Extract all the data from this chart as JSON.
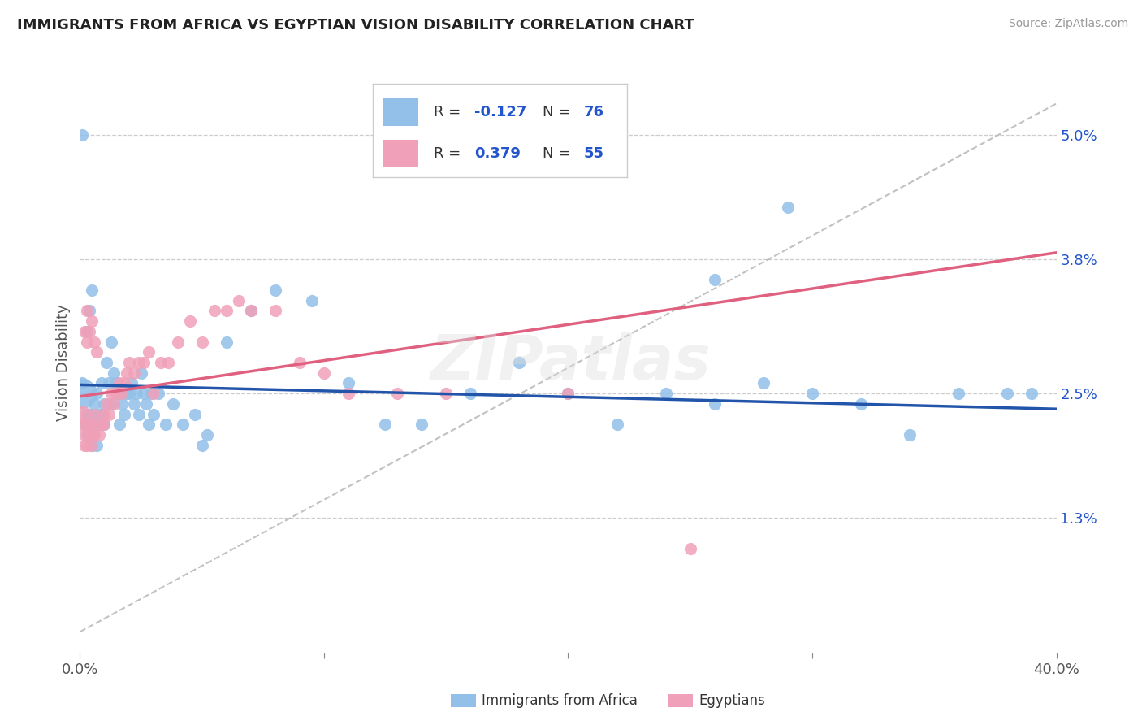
{
  "title": "IMMIGRANTS FROM AFRICA VS EGYPTIAN VISION DISABILITY CORRELATION CHART",
  "source": "Source: ZipAtlas.com",
  "ylabel": "Vision Disability",
  "xlim": [
    0.0,
    0.4
  ],
  "ylim": [
    0.0,
    0.056
  ],
  "xtick_positions": [
    0.0,
    0.1,
    0.2,
    0.3,
    0.4
  ],
  "xticklabels": [
    "0.0%",
    "",
    "",
    "",
    "40.0%"
  ],
  "ytick_positions": [
    0.013,
    0.025,
    0.038,
    0.05
  ],
  "ytick_labels": [
    "1.3%",
    "2.5%",
    "3.8%",
    "5.0%"
  ],
  "R_blue": -0.127,
  "N_blue": 76,
  "R_pink": 0.379,
  "N_pink": 55,
  "color_blue": "#92C0E8",
  "color_pink": "#F0A0B8",
  "line_color_blue": "#2255AA",
  "line_color_pink": "#E06080",
  "line_color_dashed": "#BBBBBB",
  "legend_label_blue": "Immigrants from Africa",
  "legend_label_pink": "Egyptians",
  "blue_x": [
    0.001,
    0.002,
    0.003,
    0.003,
    0.004,
    0.004,
    0.005,
    0.005,
    0.005,
    0.006,
    0.006,
    0.007,
    0.008,
    0.008,
    0.009,
    0.01,
    0.01,
    0.011,
    0.012,
    0.013,
    0.013,
    0.014,
    0.015,
    0.016,
    0.016,
    0.017,
    0.018,
    0.019,
    0.02,
    0.021,
    0.022,
    0.023,
    0.024,
    0.025,
    0.026,
    0.027,
    0.028,
    0.029,
    0.03,
    0.032,
    0.035,
    0.038,
    0.042,
    0.047,
    0.052,
    0.06,
    0.07,
    0.08,
    0.095,
    0.11,
    0.125,
    0.14,
    0.16,
    0.18,
    0.2,
    0.22,
    0.24,
    0.26,
    0.28,
    0.3,
    0.32,
    0.34,
    0.36,
    0.38,
    0.39,
    0.003,
    0.004,
    0.005,
    0.006,
    0.007,
    0.008,
    0.009,
    0.05,
    0.001,
    0.26,
    0.29
  ],
  "blue_y": [
    0.026,
    0.022,
    0.023,
    0.021,
    0.023,
    0.022,
    0.021,
    0.02,
    0.022,
    0.022,
    0.024,
    0.025,
    0.023,
    0.022,
    0.026,
    0.024,
    0.022,
    0.028,
    0.026,
    0.03,
    0.024,
    0.027,
    0.026,
    0.025,
    0.022,
    0.024,
    0.023,
    0.025,
    0.025,
    0.026,
    0.024,
    0.025,
    0.023,
    0.027,
    0.025,
    0.024,
    0.022,
    0.025,
    0.023,
    0.025,
    0.022,
    0.024,
    0.022,
    0.023,
    0.021,
    0.03,
    0.033,
    0.035,
    0.034,
    0.026,
    0.022,
    0.022,
    0.025,
    0.028,
    0.025,
    0.022,
    0.025,
    0.024,
    0.026,
    0.025,
    0.024,
    0.021,
    0.025,
    0.025,
    0.025,
    0.031,
    0.033,
    0.035,
    0.022,
    0.02,
    0.022,
    0.023,
    0.02,
    0.05,
    0.036,
    0.043
  ],
  "blue_x_large": [
    0.001
  ],
  "blue_y_large": [
    0.025
  ],
  "pink_x": [
    0.001,
    0.002,
    0.002,
    0.003,
    0.003,
    0.004,
    0.004,
    0.005,
    0.005,
    0.006,
    0.006,
    0.007,
    0.008,
    0.009,
    0.01,
    0.01,
    0.011,
    0.012,
    0.013,
    0.014,
    0.015,
    0.016,
    0.017,
    0.018,
    0.019,
    0.02,
    0.022,
    0.024,
    0.026,
    0.028,
    0.03,
    0.033,
    0.036,
    0.04,
    0.045,
    0.05,
    0.055,
    0.06,
    0.065,
    0.07,
    0.08,
    0.09,
    0.1,
    0.11,
    0.13,
    0.15,
    0.2,
    0.003,
    0.004,
    0.005,
    0.006,
    0.007,
    0.002,
    0.003,
    0.25
  ],
  "pink_y": [
    0.022,
    0.02,
    0.021,
    0.022,
    0.02,
    0.021,
    0.022,
    0.02,
    0.021,
    0.021,
    0.023,
    0.022,
    0.021,
    0.022,
    0.023,
    0.022,
    0.024,
    0.023,
    0.025,
    0.024,
    0.025,
    0.026,
    0.025,
    0.026,
    0.027,
    0.028,
    0.027,
    0.028,
    0.028,
    0.029,
    0.025,
    0.028,
    0.028,
    0.03,
    0.032,
    0.03,
    0.033,
    0.033,
    0.034,
    0.033,
    0.033,
    0.028,
    0.027,
    0.025,
    0.025,
    0.025,
    0.025,
    0.03,
    0.031,
    0.032,
    0.03,
    0.029,
    0.031,
    0.033,
    0.01
  ],
  "pink_x_large": [
    0.001
  ],
  "pink_y_large": [
    0.023
  ]
}
